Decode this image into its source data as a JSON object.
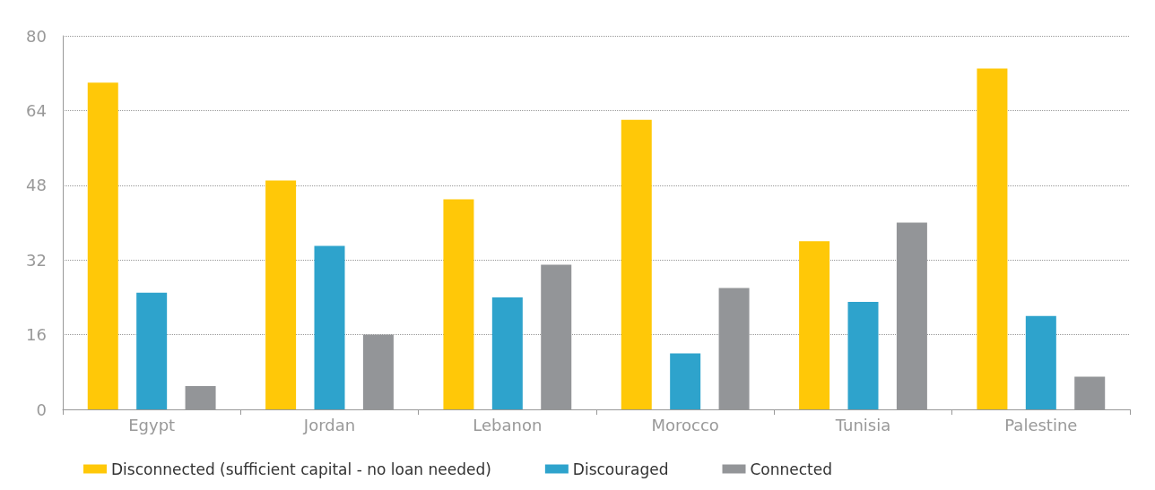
{
  "chart_data": {
    "type": "bar",
    "categories": [
      "Egypt",
      "Jordan",
      "Lebanon",
      "Morocco",
      "Tunisia",
      "Palestine"
    ],
    "series": [
      {
        "name": "Disconnected (sufficient capital - no loan needed)",
        "color": "#ffc808",
        "values": [
          70,
          49,
          45,
          62,
          36,
          73
        ]
      },
      {
        "name": "Discouraged",
        "color": "#2ea3cc",
        "values": [
          25,
          35,
          24,
          12,
          23,
          20
        ]
      },
      {
        "name": "Connected",
        "color": "#939598",
        "values": [
          5,
          16,
          31,
          26,
          40,
          7
        ]
      }
    ],
    "ylim": [
      0,
      80
    ],
    "yticks": [
      0,
      16,
      32,
      48,
      64,
      80
    ],
    "grid": "y",
    "legend": "bottom"
  }
}
